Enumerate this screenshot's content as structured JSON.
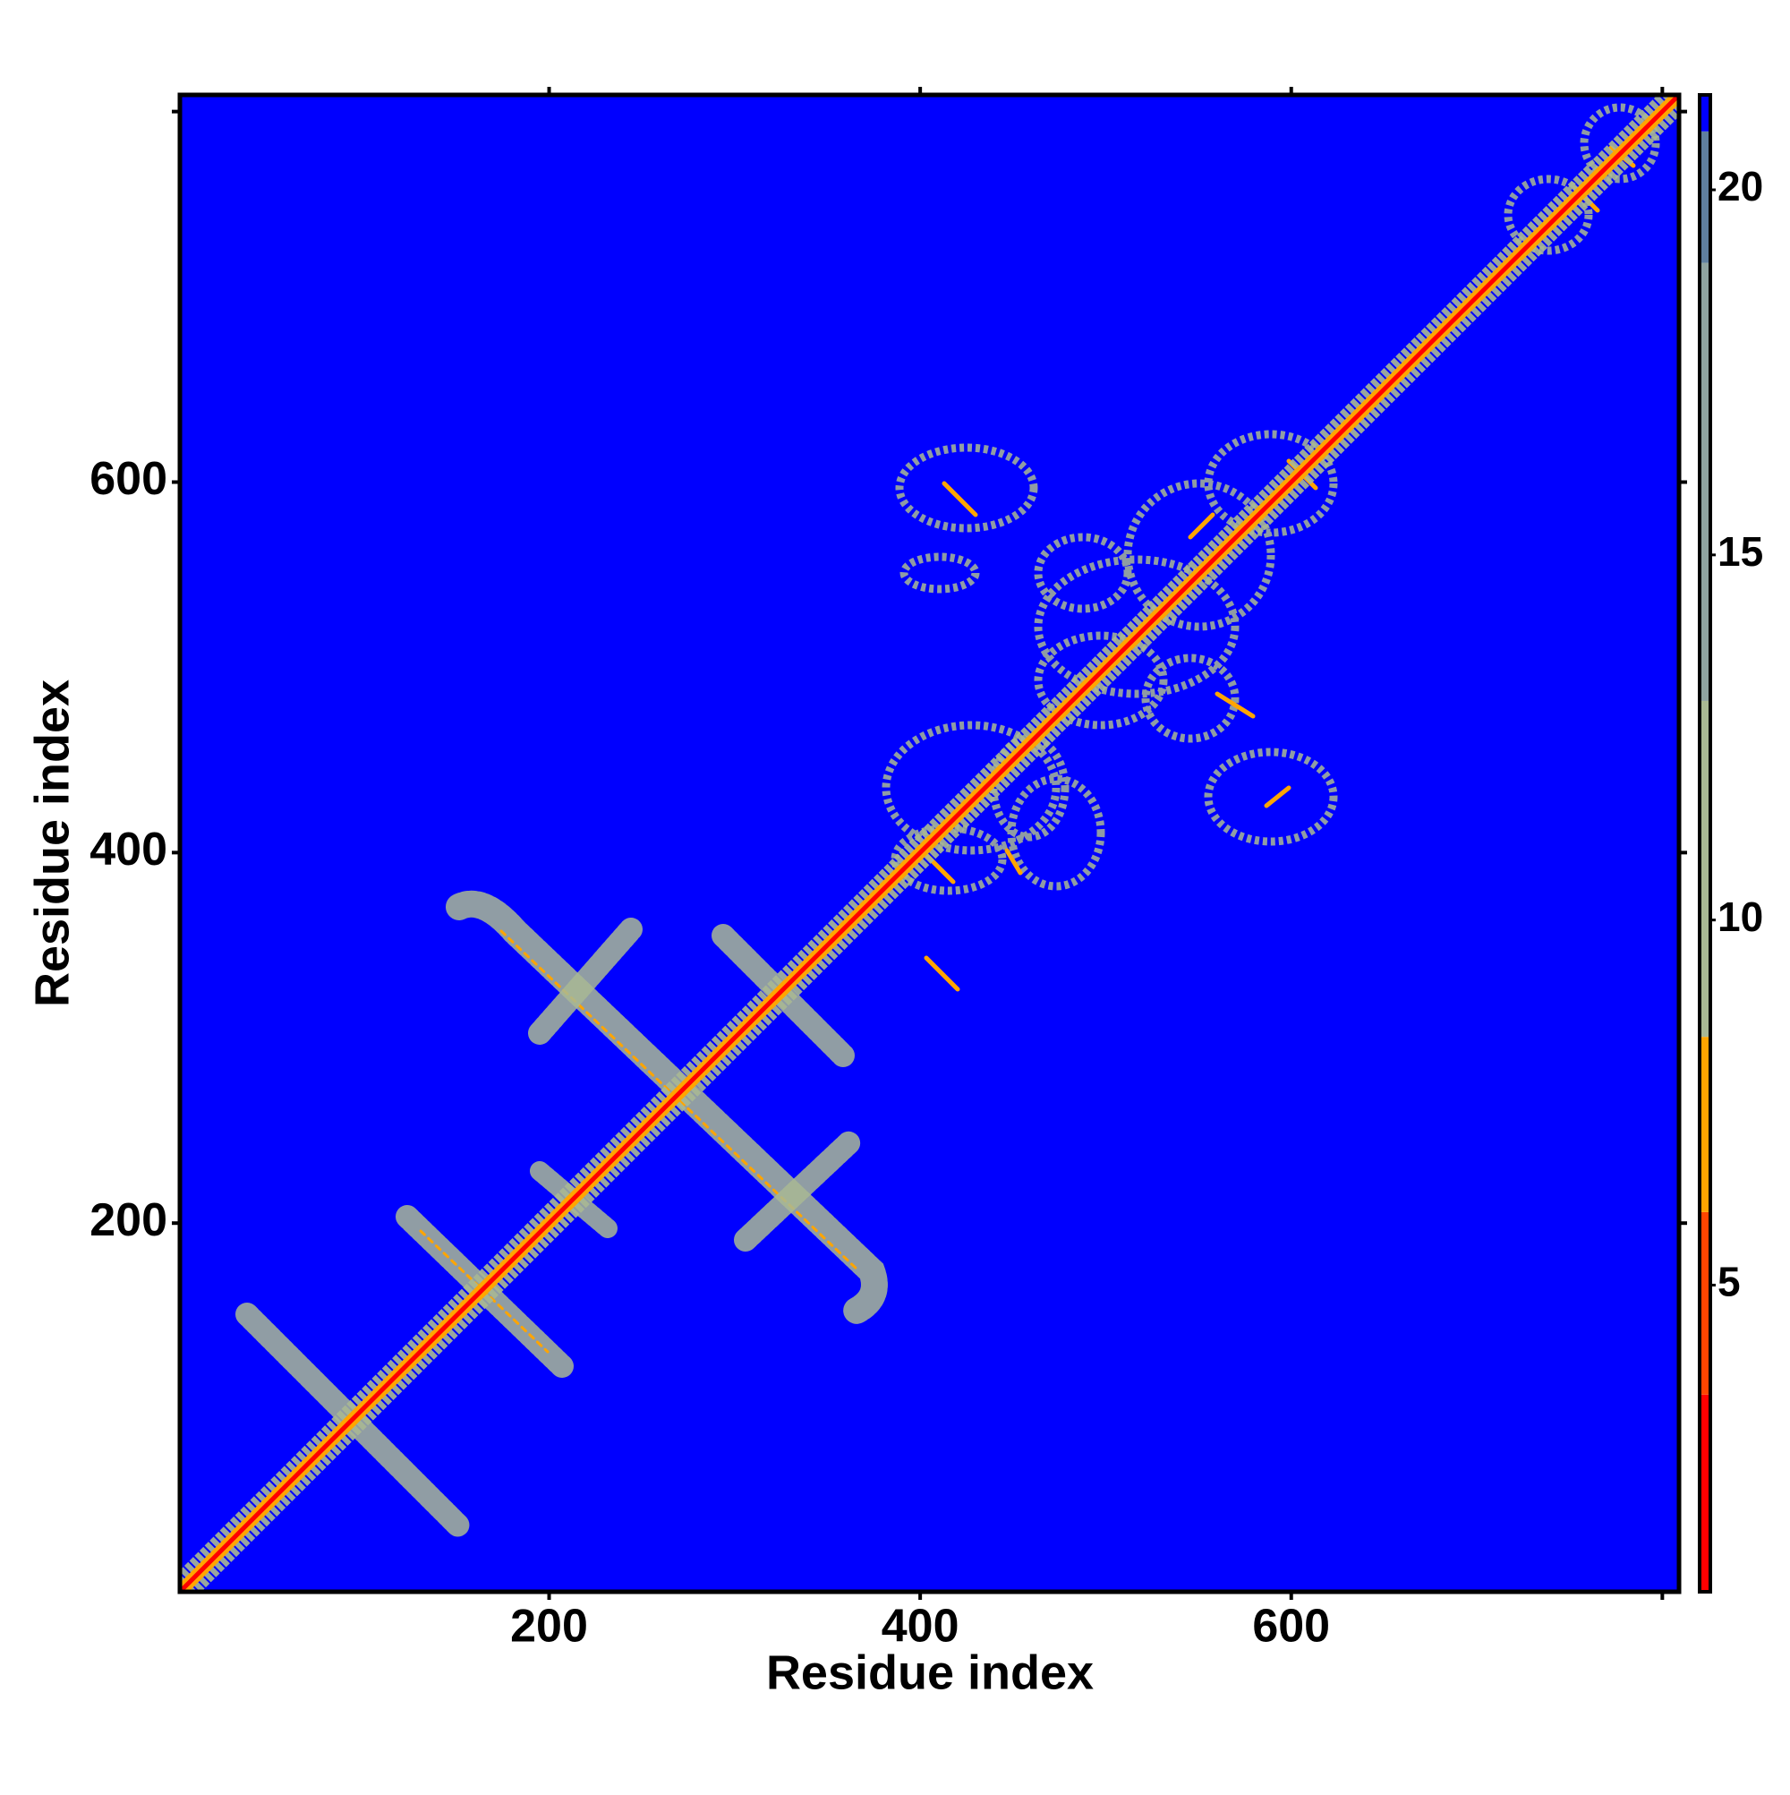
{
  "chart_data": {
    "type": "heatmap",
    "x_label": "Residue index",
    "y_label": "Residue index",
    "xlim": [
      1,
      809
    ],
    "ylim": [
      1,
      809
    ],
    "xticks": [
      200,
      400,
      600,
      {
        "value": 800,
        "label": null
      }
    ],
    "yticks": [
      200,
      400,
      600,
      {
        "value": 800,
        "label": null
      }
    ],
    "background_color": "#0000ff",
    "colorbar": {
      "lim": [
        0.8,
        21.3
      ],
      "ticks": [
        5,
        10,
        15,
        20
      ],
      "bands": [
        {
          "from": 0.8,
          "to": 3.5,
          "color": "#ff0000"
        },
        {
          "from": 3.5,
          "to": 6,
          "color": "#ff4500"
        },
        {
          "from": 6,
          "to": 8.4,
          "color": "#ffa500"
        },
        {
          "from": 8.4,
          "to": 13,
          "color": "#a9b894"
        },
        {
          "from": 13,
          "to": 19,
          "color": "#8fa3a0"
        },
        {
          "from": 19,
          "to": 20.8,
          "color": "#5f7f9f"
        },
        {
          "from": 20.8,
          "to": 21.3,
          "color": "#0000ff"
        }
      ]
    }
  }
}
